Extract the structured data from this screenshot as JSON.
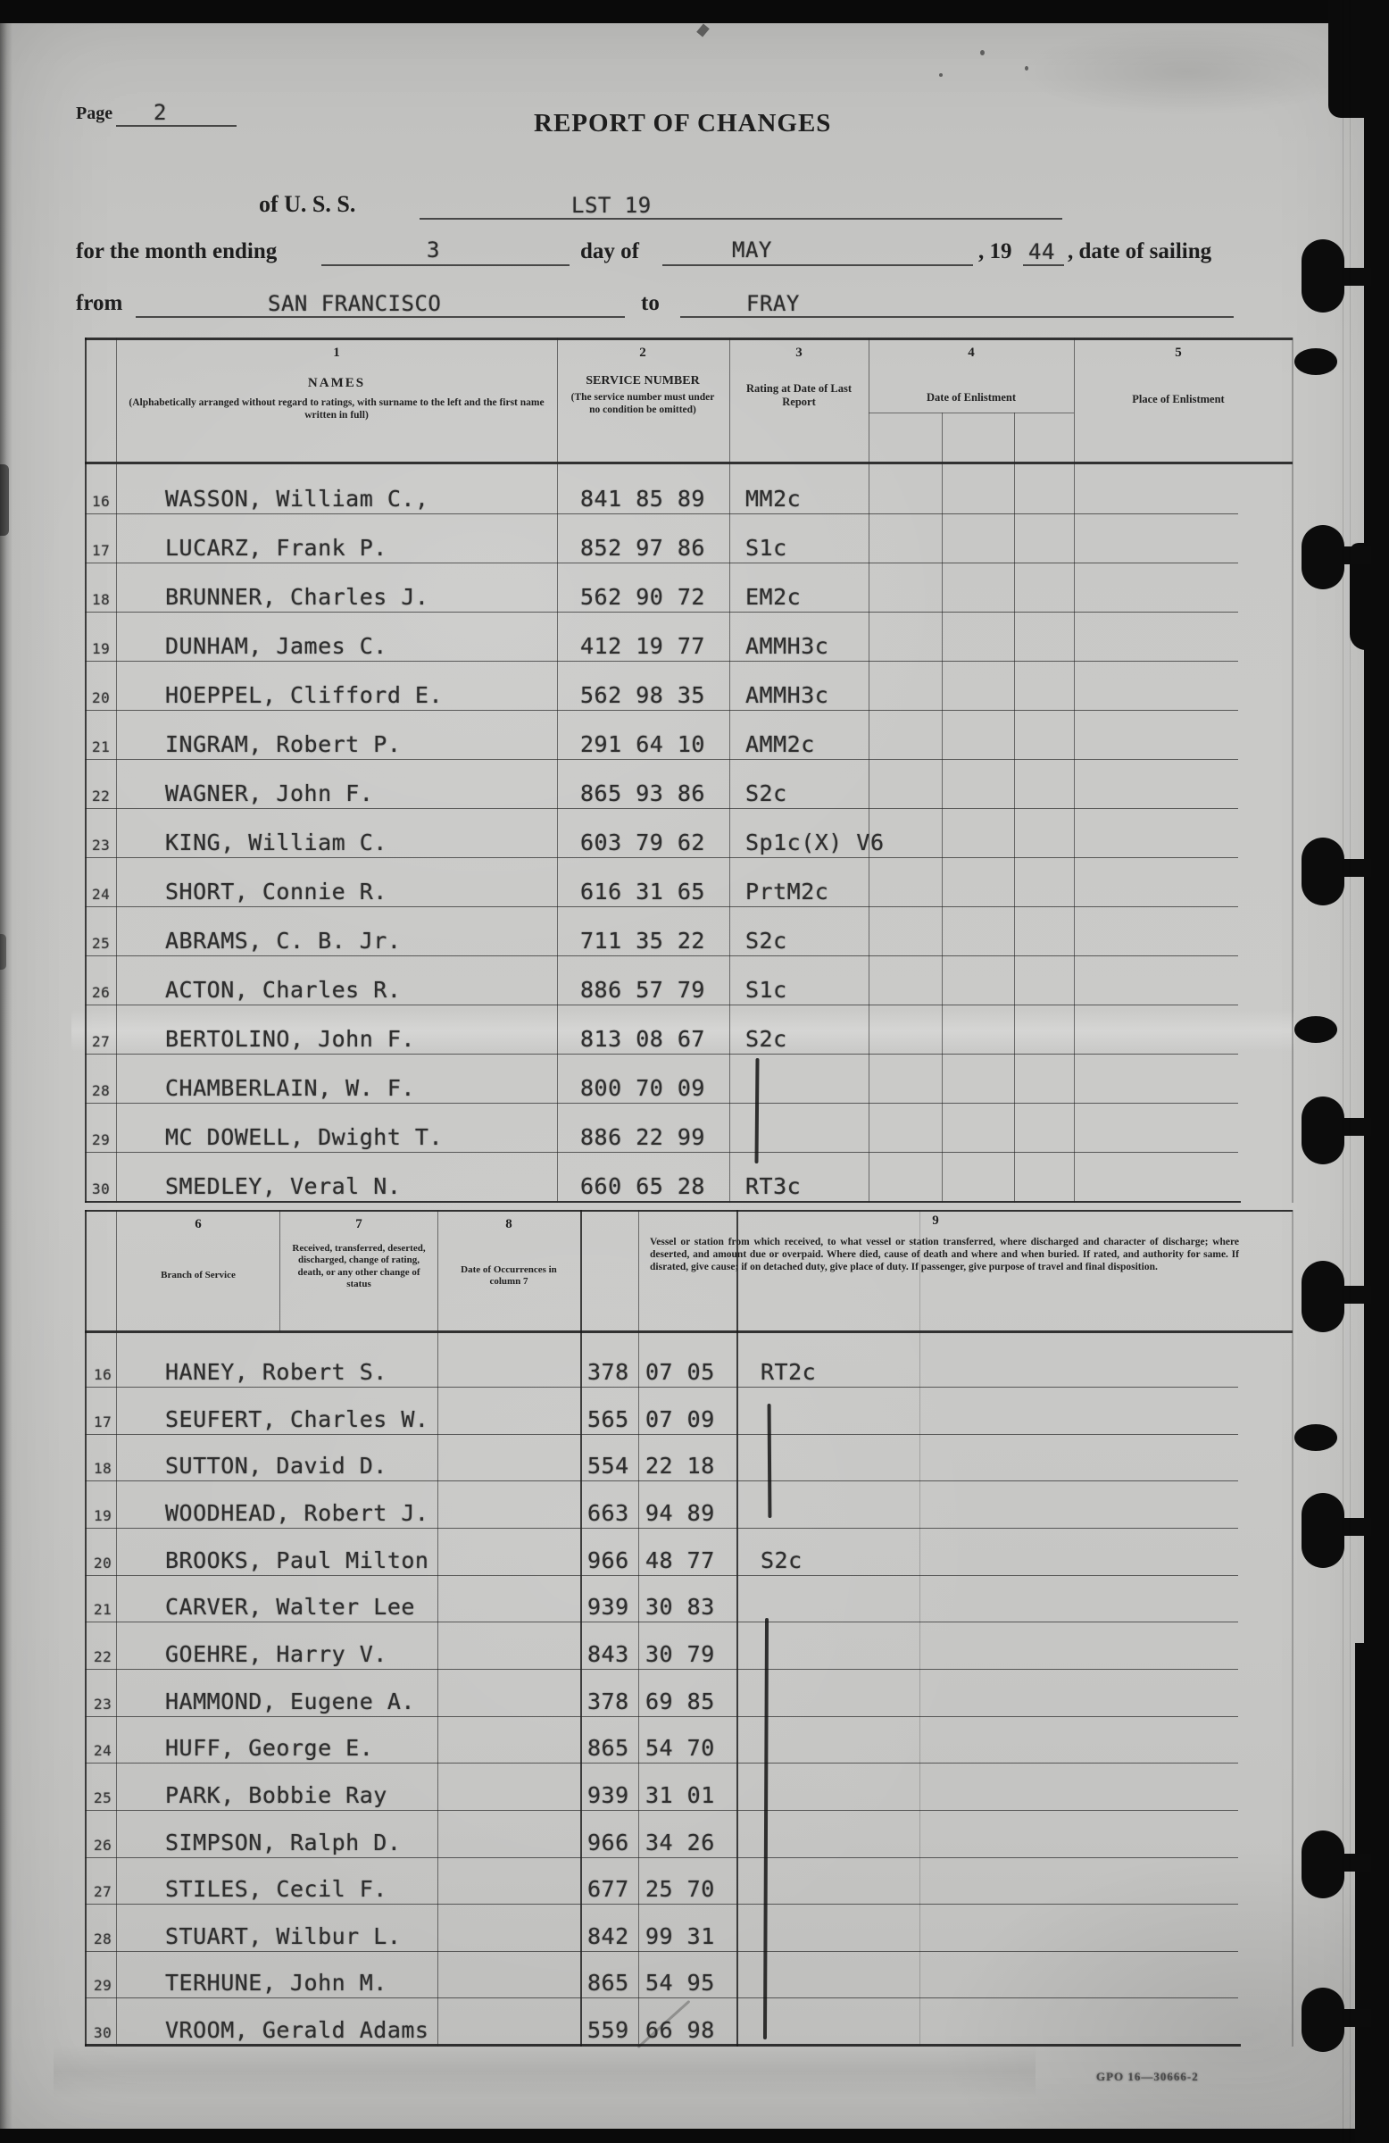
{
  "colors": {
    "paper": "#c6c6c4",
    "typed_ink": "#2e2e2e",
    "printed_ink": "#1e1e1e",
    "artifact_black": "#0c0c0c"
  },
  "header": {
    "page_label": "Page",
    "page_number": "2",
    "title": "REPORT OF CHANGES",
    "uss_label": "of U. S. S.",
    "ship_name": "LST 19",
    "month_label": "for the month ending",
    "month_day": "3",
    "day_of_label": "day of",
    "month_value": "MAY",
    "year_prefix": ", 19",
    "year_value": "44",
    "sailing_label": ", date of sailing",
    "from_label": "from",
    "from_value": "SAN FRANCISCO",
    "to_label": "to",
    "to_value": "FRAY"
  },
  "table1": {
    "columns": [
      {
        "num": "1",
        "title": "NAMES",
        "subtitle": "(Alphabetically arranged without regard to ratings, with surname to the left and the first name written in full)"
      },
      {
        "num": "2",
        "title": "SERVICE NUMBER",
        "subtitle": "(The service number must under no condition be omitted)"
      },
      {
        "num": "3",
        "title": "Rating at Date of Last Report"
      },
      {
        "num": "4",
        "title": "Date of Enlistment"
      },
      {
        "num": "5",
        "title": "Place of Enlistment"
      }
    ],
    "rows": [
      {
        "num": "16",
        "name": "WASSON, William C.,",
        "service": "841 85 89",
        "rating": "MM2c"
      },
      {
        "num": "17",
        "name": "LUCARZ, Frank P.",
        "service": "852 97 86",
        "rating": "S1c"
      },
      {
        "num": "18",
        "name": "BRUNNER, Charles J.",
        "service": "562 90 72",
        "rating": "EM2c"
      },
      {
        "num": "19",
        "name": "DUNHAM, James C.",
        "service": "412 19 77",
        "rating": "AMMH3c"
      },
      {
        "num": "20",
        "name": "HOEPPEL, Clifford E.",
        "service": "562 98 35",
        "rating": "AMMH3c"
      },
      {
        "num": "21",
        "name": "INGRAM, Robert P.",
        "service": "291 64 10",
        "rating": "AMM2c"
      },
      {
        "num": "22",
        "name": "WAGNER, John F.",
        "service": "865 93 86",
        "rating": "S2c"
      },
      {
        "num": "23",
        "name": "KING, William C.",
        "service": "603 79 62",
        "rating": "Sp1c(X) V6"
      },
      {
        "num": "24",
        "name": "SHORT, Connie R.",
        "service": "616 31 65",
        "rating": "PrtM2c"
      },
      {
        "num": "25",
        "name": "ABRAMS, C. B. Jr.",
        "service": "711 35 22",
        "rating": "S2c"
      },
      {
        "num": "26",
        "name": "ACTON, Charles R.",
        "service": "886 57 79",
        "rating": "S1c"
      },
      {
        "num": "27",
        "name": "BERTOLINO, John F.",
        "service": "813 08 67",
        "rating": "S2c"
      },
      {
        "num": "28",
        "name": "CHAMBERLAIN, W. F.",
        "service": "800 70 09",
        "rating": ""
      },
      {
        "num": "29",
        "name": "MC DOWELL, Dwight T.",
        "service": "886 22 99",
        "rating": ""
      },
      {
        "num": "30",
        "name": "SMEDLEY, Veral N.",
        "service": "660 65 28",
        "rating": "RT3c"
      }
    ]
  },
  "table2": {
    "columns": [
      {
        "num": "6",
        "title": "Branch of Service"
      },
      {
        "num": "7",
        "title": "Received, transferred, deserted, discharged, change of rating, death, or any other change of status"
      },
      {
        "num": "8",
        "title": "Date of Occurrences in column 7"
      },
      {
        "num": "9",
        "title": "Vessel or station from which received, to what vessel or station transferred, where discharged and character of discharge; where deserted, and amount due or overpaid.  Where died, cause of death and where and when buried.  If rated, and authority for same.  If disrated, give cause; if on detached duty, give place of duty.  If passenger, give purpose of travel and final disposition."
      }
    ],
    "rows": [
      {
        "num": "16",
        "name": "HANEY, Robert S.",
        "sn1": "378",
        "sn2": "07 05",
        "rating": "RT2c"
      },
      {
        "num": "17",
        "name": "SEUFERT, Charles W.",
        "sn1": "565",
        "sn2": "07 09",
        "rating": ""
      },
      {
        "num": "18",
        "name": "SUTTON, David D.",
        "sn1": "554",
        "sn2": "22 18",
        "rating": ""
      },
      {
        "num": "19",
        "name": "WOODHEAD, Robert J.",
        "sn1": "663",
        "sn2": "94 89",
        "rating": ""
      },
      {
        "num": "20",
        "name": "BROOKS, Paul Milton",
        "sn1": "966",
        "sn2": "48 77",
        "rating": "S2c"
      },
      {
        "num": "21",
        "name": "CARVER, Walter Lee",
        "sn1": "939",
        "sn2": "30 83",
        "rating": ""
      },
      {
        "num": "22",
        "name": "GOEHRE, Harry V.",
        "sn1": "843",
        "sn2": "30 79",
        "rating": ""
      },
      {
        "num": "23",
        "name": "HAMMOND, Eugene A.",
        "sn1": "378",
        "sn2": "69 85",
        "rating": ""
      },
      {
        "num": "24",
        "name": "HUFF, George E.",
        "sn1": "865",
        "sn2": "54 70",
        "rating": ""
      },
      {
        "num": "25",
        "name": "PARK, Bobbie Ray",
        "sn1": "939",
        "sn2": "31 01",
        "rating": ""
      },
      {
        "num": "26",
        "name": "SIMPSON, Ralph D.",
        "sn1": "966",
        "sn2": "34 26",
        "rating": ""
      },
      {
        "num": "27",
        "name": "STILES, Cecil F.",
        "sn1": "677",
        "sn2": "25 70",
        "rating": ""
      },
      {
        "num": "28",
        "name": "STUART, Wilbur L.",
        "sn1": "842",
        "sn2": "99 31",
        "rating": ""
      },
      {
        "num": "29",
        "name": "TERHUNE, John M.",
        "sn1": "865",
        "sn2": "54 95",
        "rating": ""
      },
      {
        "num": "30",
        "name": "VROOM, Gerald Adams",
        "sn1": "559",
        "sn2": "66 98",
        "rating": ""
      }
    ]
  },
  "footer": {
    "code": "GPO  16—30666-2"
  }
}
